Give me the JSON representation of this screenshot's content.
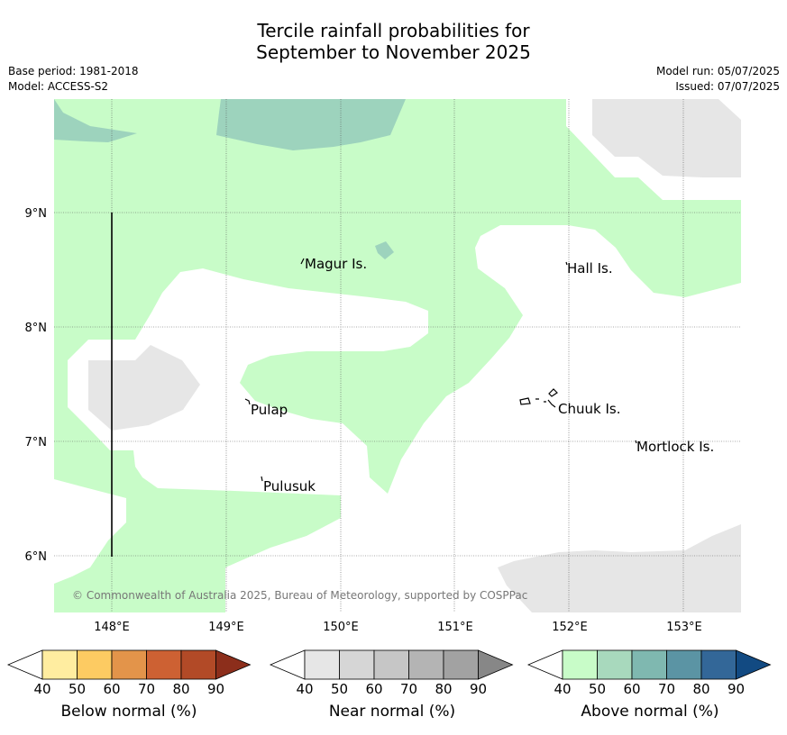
{
  "title_line1": "Tercile rainfall probabilities for",
  "title_line2": "September to November 2025",
  "meta_left": {
    "base_period": "Base period: 1981-2018",
    "model": "Model: ACCESS-S2"
  },
  "meta_right": {
    "model_run": "Model run: 05/07/2025",
    "issued": "Issued: 07/07/2025"
  },
  "map": {
    "lon_ticks": [
      "148°E",
      "149°E",
      "150°E",
      "151°E",
      "152°E",
      "153°E"
    ],
    "lat_ticks": [
      "9°N",
      "8°N",
      "7°N",
      "6°N"
    ],
    "places": [
      "Magur Is.",
      "Hall Is.",
      "Pulap",
      "Chuuk Is.",
      "Mortlock Is.",
      "Pulusuk"
    ],
    "copyright": "© Commonwealth of Australia 2025, Bureau of Meteorology, supported by COSPPac",
    "colors": {
      "above_40": "#c8fcc8",
      "above_50": "#9dd3bd",
      "near_40": "#e6e6e6"
    }
  },
  "colorbars": [
    {
      "label": "Below normal (%)",
      "ticks": [
        "40",
        "50",
        "60",
        "70",
        "80",
        "90"
      ],
      "colors": [
        "#ffeda0",
        "#fdcb62",
        "#e3944a",
        "#cd6133",
        "#b24a27",
        "#8c2e1b"
      ]
    },
    {
      "label": "Near normal (%)",
      "ticks": [
        "40",
        "50",
        "60",
        "70",
        "80",
        "90"
      ],
      "colors": [
        "#e6e6e6",
        "#d6d6d6",
        "#c6c6c6",
        "#b4b4b4",
        "#a2a2a2",
        "#878787"
      ]
    },
    {
      "label": "Above normal (%)",
      "ticks": [
        "40",
        "50",
        "60",
        "70",
        "80",
        "90"
      ],
      "colors": [
        "#c8fcc8",
        "#a8d9bd",
        "#7fb8b0",
        "#5b94a4",
        "#336798",
        "#124a82"
      ]
    }
  ]
}
